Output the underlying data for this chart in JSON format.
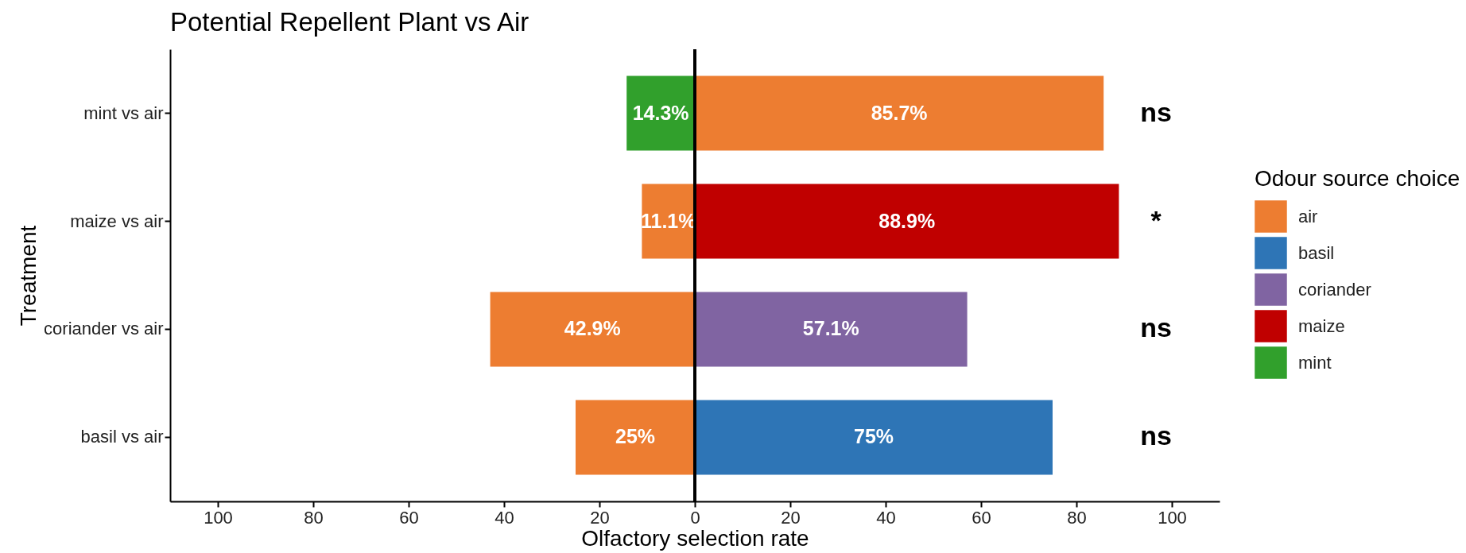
{
  "chart_data": {
    "type": "bar",
    "orientation": "horizontal",
    "title": "Potential Repellent Plant vs Air",
    "xlabel": "Olfactory selection rate",
    "ylabel": "Treatment",
    "legend_title": "Odour source choice",
    "legend": "right",
    "categories": [
      "mint vs air",
      "maize vs air",
      "coriander vs air",
      "basil vs air"
    ],
    "series": [
      {
        "name": "air",
        "color": "#ed7d31",
        "values": [
          85.7,
          11.1,
          42.9,
          25
        ],
        "base": [
          0,
          -11.1,
          -42.9,
          -25
        ],
        "value_labels": [
          "85.7%",
          "11.1%",
          "42.9%",
          "25%"
        ]
      },
      {
        "name": "basil",
        "color": "#2e75b6",
        "values": [
          null,
          null,
          null,
          75
        ],
        "base": [
          null,
          null,
          null,
          0
        ],
        "value_labels": [
          null,
          null,
          null,
          "75%"
        ]
      },
      {
        "name": "coriander",
        "color": "#8064a2",
        "values": [
          null,
          null,
          57.1,
          null
        ],
        "base": [
          null,
          null,
          0,
          null
        ],
        "value_labels": [
          null,
          null,
          "57.1%",
          null
        ]
      },
      {
        "name": "maize",
        "color": "#c00000",
        "values": [
          null,
          88.9,
          null,
          null
        ],
        "base": [
          null,
          0,
          null,
          null
        ],
        "value_labels": [
          null,
          "88.9%",
          null,
          null
        ]
      },
      {
        "name": "mint",
        "color": "#31a02c",
        "values": [
          14.3,
          null,
          null,
          null
        ],
        "base": [
          -14.3,
          null,
          null,
          null
        ],
        "value_labels": [
          "14.3%",
          null,
          null,
          null
        ]
      }
    ],
    "xlim": [
      -110,
      110
    ],
    "xticks": [
      {
        "value": -100,
        "label": "100"
      },
      {
        "value": -80,
        "label": "80"
      },
      {
        "value": -60,
        "label": "60"
      },
      {
        "value": -40,
        "label": "40"
      },
      {
        "value": -20,
        "label": "20"
      },
      0,
      20,
      40,
      60,
      80,
      100
    ],
    "ref_lines": [
      {
        "axis": "x",
        "value": 0,
        "color": "#000000"
      }
    ],
    "annotations": [
      "ns",
      "*",
      "ns",
      "ns"
    ]
  }
}
